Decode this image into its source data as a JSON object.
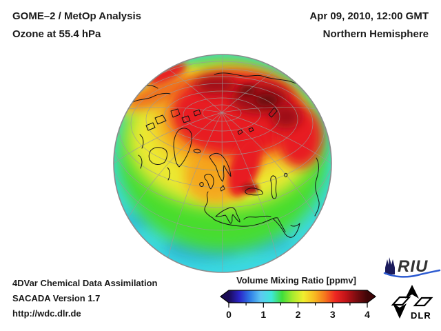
{
  "header": {
    "title_line1": "GOME–2 / MetOp Analysis",
    "title_line2": "Ozone at 55.4 hPa",
    "datetime": "Apr 09, 2010, 12:00 GMT",
    "region": "Northern Hemisphere"
  },
  "footer": {
    "line1": "4DVar Chemical Data Assimilation",
    "line2": "SACADA Version 1.7",
    "line3": "http://wdc.dlr.de"
  },
  "colorbar": {
    "title": "Volume Mixing Ratio [ppmv]",
    "unit": "ppmv",
    "min": 0,
    "max": 4,
    "ticks": [
      "0",
      "1",
      "2",
      "3",
      "4"
    ],
    "gradient": [
      "#1a0b55",
      "#2a24c8",
      "#2f7de6",
      "#5ec8f2",
      "#3fe8da",
      "#3fdd3a",
      "#a8ea2e",
      "#f0ee2f",
      "#f7bc22",
      "#f6781d",
      "#ee2722",
      "#c01318",
      "#7a0c10",
      "#3f0507"
    ]
  },
  "globe": {
    "projection": "Northern Hemisphere",
    "palette": {
      "base_cyan": "#3bd8e2",
      "patch_blue": "#2aaede",
      "green": "#46dd2e",
      "yellow": "#ece932",
      "orange": "#f6a21e",
      "orange_deep": "#f0701c",
      "red": "#e81e22",
      "dark_red": "#9c1014",
      "very_dark_red": "#6e0a0e",
      "black_sea_red": "#ae1216"
    },
    "coastline_color": "#141414",
    "graticule_color": "#9b9b9b",
    "rim_color": "#8c8c8c"
  },
  "logos": {
    "riu": {
      "label": "RIU",
      "swoosh_color": "#2d5bd1",
      "cathedral_color": "#1b1b5c",
      "text_color": "#333333"
    },
    "dlr": {
      "label": "DLR",
      "color": "#000000"
    }
  }
}
